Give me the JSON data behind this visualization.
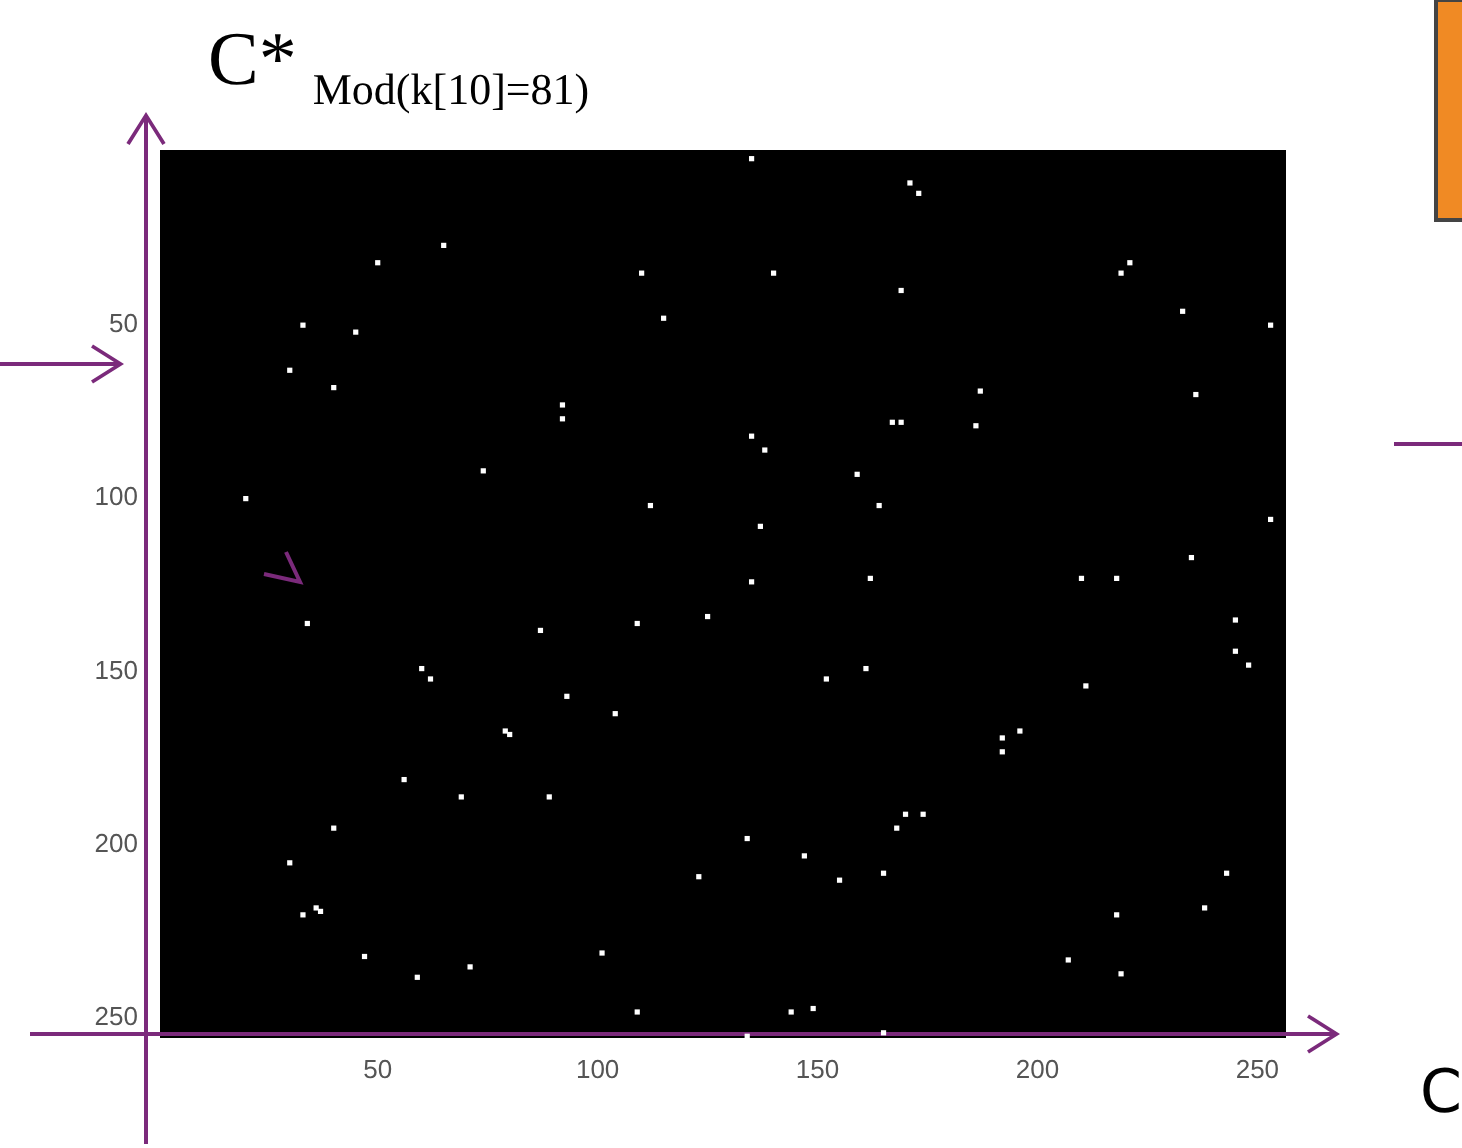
{
  "chart_data": {
    "type": "scatter",
    "title": "C*$_{Mod(k[10]=81)}$",
    "annotations": [
      "C"
    ],
    "marker": "square",
    "grid": false,
    "xlim": [
      0.5,
      256.5
    ],
    "ylim": [
      256.5,
      0.5
    ],
    "xticks": [
      50,
      100,
      150,
      200,
      250
    ],
    "yticks": [
      50,
      100,
      150,
      200,
      250
    ],
    "series": [
      {
        "color": "#ffffff",
        "x": [
          135,
          171,
          173,
          140,
          169,
          221,
          219,
          233,
          253,
          187,
          236,
          169,
          167,
          186,
          135,
          138,
          159,
          164,
          137,
          253,
          235,
          210,
          218,
          135,
          162,
          65,
          50,
          33,
          45,
          30,
          40,
          20,
          110,
          115,
          92,
          92,
          74,
          112,
          34,
          87,
          109,
          125,
          60,
          62,
          93,
          104,
          79,
          80,
          56,
          69,
          89,
          40,
          30,
          36,
          37,
          33,
          47,
          59,
          71,
          101,
          109,
          123,
          152,
          161,
          211,
          192,
          196,
          192,
          245,
          245,
          248,
          170,
          174,
          168,
          134,
          147,
          155,
          165,
          243,
          238,
          218,
          207,
          219,
          144,
          149,
          134,
          165
        ],
        "values": [
          3,
          10,
          13,
          36,
          41,
          33,
          36,
          47,
          51,
          70,
          71,
          79,
          79,
          80,
          83,
          87,
          94,
          103,
          109,
          107,
          118,
          124,
          124,
          125,
          124,
          28,
          33,
          51,
          53,
          64,
          69,
          101,
          36,
          49,
          74,
          78,
          93,
          103,
          137,
          139,
          137,
          135,
          150,
          153,
          158,
          163,
          168,
          169,
          182,
          187,
          187,
          196,
          206,
          219,
          220,
          221,
          233,
          239,
          236,
          232,
          249,
          210,
          153,
          150,
          155,
          170,
          168,
          174,
          136,
          145,
          149,
          192,
          192,
          196,
          199,
          204,
          211,
          209,
          209,
          219,
          221,
          234,
          238,
          249,
          248,
          256,
          255
        ]
      }
    ]
  }
}
